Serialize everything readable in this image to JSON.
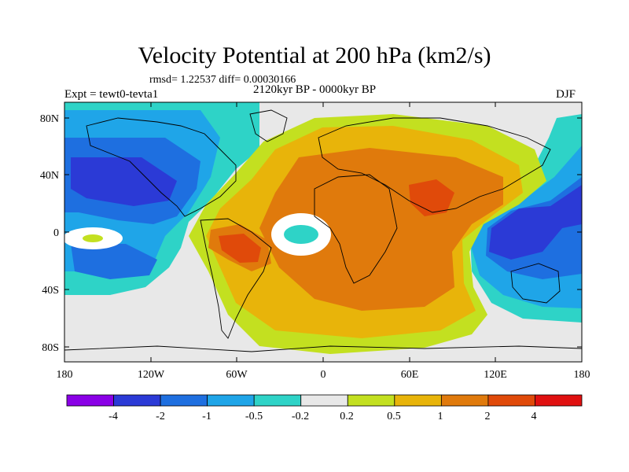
{
  "header": {
    "title": "Velocity Potential at 200 hPa (km2/s)",
    "stats": "rmsd= 1.22537 diff= 0.00030166",
    "experiment": "Expt = tewt0-tevta1",
    "period": "2120kyr BP - 0000kyr BP",
    "season": "DJF"
  },
  "axes": {
    "lat_ticks": [
      "80N",
      "40N",
      "0",
      "40S",
      "80S"
    ],
    "lon_ticks": [
      "180",
      "120W",
      "60W",
      "0",
      "60E",
      "120E",
      "180"
    ]
  },
  "colorbar": {
    "colors": [
      "#8a00e6",
      "#2b3ad6",
      "#1e6fe0",
      "#1fa5e8",
      "#2ed3c7",
      "#e8e8e8",
      "#c3e020",
      "#e8b40a",
      "#e07a0c",
      "#e04a0a",
      "#e01010"
    ],
    "labels": [
      "-4",
      "-2",
      "-1",
      "-0.5",
      "-0.2",
      "0.2",
      "0.5",
      "1",
      "2",
      "4"
    ]
  }
}
